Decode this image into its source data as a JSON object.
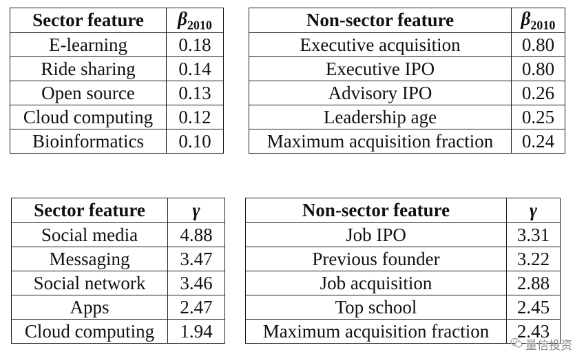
{
  "tables": [
    {
      "header": [
        "Sector feature",
        "β",
        "2010"
      ],
      "rows": [
        [
          "E-learning",
          "0.18"
        ],
        [
          "Ride sharing",
          "0.14"
        ],
        [
          "Open source",
          "0.13"
        ],
        [
          "Cloud computing",
          "0.12"
        ],
        [
          "Bioinformatics",
          "0.10"
        ]
      ]
    },
    {
      "header": [
        "Non-sector feature",
        "β",
        "2010"
      ],
      "rows": [
        [
          "Executive acquisition",
          "0.80"
        ],
        [
          "Executive IPO",
          "0.80"
        ],
        [
          "Advisory IPO",
          "0.26"
        ],
        [
          "Leadership age",
          "0.25"
        ],
        [
          "Maximum acquisition fraction",
          "0.24"
        ]
      ]
    },
    {
      "header": [
        "Sector feature",
        "γ"
      ],
      "rows": [
        [
          "Social media",
          "4.88"
        ],
        [
          "Messaging",
          "3.47"
        ],
        [
          "Social network",
          "3.46"
        ],
        [
          "Apps",
          "2.47"
        ],
        [
          "Cloud computing",
          "1.94"
        ]
      ]
    },
    {
      "header": [
        "Non-sector feature",
        "γ"
      ],
      "rows": [
        [
          "Job IPO",
          "3.31"
        ],
        [
          "Previous founder",
          "3.22"
        ],
        [
          "Job acquisition",
          "2.88"
        ],
        [
          "Top school",
          "2.45"
        ],
        [
          "Maximum acquisition fraction",
          "2.43"
        ]
      ]
    }
  ],
  "watermark": {
    "icon": "wechat-icon",
    "text": "量信投资"
  }
}
